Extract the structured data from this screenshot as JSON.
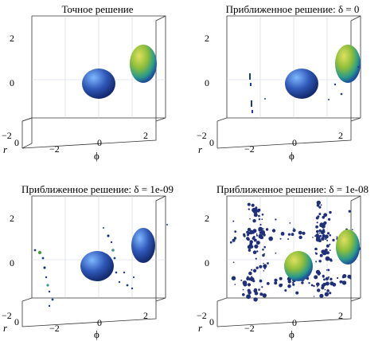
{
  "panels": [
    {
      "title": "Точное решение",
      "ylabel": "r",
      "xlabel": "ϕ",
      "zticks": [
        "2",
        "0",
        "−2"
      ],
      "xticks": [
        "−2",
        "0",
        "2"
      ],
      "rtick": "0",
      "colors": {
        "blob_blue": "#2f58b8",
        "blob_green": "#8fbf3a"
      }
    },
    {
      "title": "Приближенное решение: δ = 0",
      "ylabel": "r",
      "xlabel": "ϕ",
      "zticks": [
        "2",
        "0",
        "−2"
      ],
      "xticks": [
        "−2",
        "0",
        "2"
      ],
      "rtick": "0"
    },
    {
      "title": "Приближенное решение: δ = 1e-09",
      "ylabel": "r",
      "xlabel": "ϕ",
      "zticks": [
        "2",
        "0",
        "−2"
      ],
      "xticks": [
        "−2",
        "0",
        "2"
      ],
      "rtick": "0"
    },
    {
      "title": "Приближенное решение: δ = 1e-08",
      "ylabel": "r",
      "xlabel": "ϕ",
      "zticks": [
        "2",
        "0",
        "−2"
      ],
      "xticks": [
        "−2",
        "0",
        "2"
      ],
      "rtick": "0"
    }
  ]
}
